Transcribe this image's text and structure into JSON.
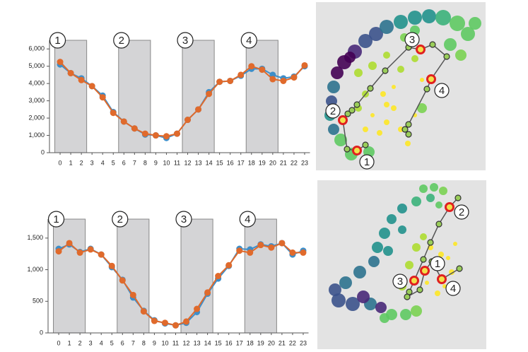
{
  "chart_data": [
    {
      "type": "line",
      "x": [
        0,
        1,
        2,
        3,
        4,
        5,
        6,
        7,
        8,
        9,
        10,
        11,
        12,
        13,
        14,
        15,
        16,
        17,
        18,
        19,
        20,
        21,
        22,
        23
      ],
      "xticks": [
        0,
        1,
        2,
        3,
        4,
        5,
        6,
        7,
        8,
        9,
        10,
        11,
        12,
        13,
        14,
        15,
        16,
        17,
        18,
        19,
        20,
        21,
        22,
        23
      ],
      "xlim": [
        -1,
        23.5
      ],
      "ylim": [
        0,
        6500
      ],
      "yticks": [
        0,
        {
          "value": 1000,
          "label": "1,000"
        },
        {
          "value": 2000,
          "label": "2,000"
        },
        {
          "value": 3000,
          "label": "3,000"
        },
        {
          "value": 4000,
          "label": "4,000"
        },
        {
          "value": 5000,
          "label": "5,000"
        },
        {
          "value": 6000,
          "label": "6,000"
        }
      ],
      "series": [
        {
          "color": "#3d8ec9",
          "values": [
            5100,
            4600,
            4300,
            3850,
            3300,
            2350,
            1800,
            1400,
            1050,
            1000,
            850,
            1100,
            1900,
            2500,
            3500,
            4100,
            4150,
            4450,
            4850,
            4850,
            4500,
            4300,
            4400,
            5000
          ]
        },
        {
          "color": "#e06a2c",
          "values": [
            5250,
            4600,
            4200,
            3850,
            3200,
            2300,
            1800,
            1400,
            1100,
            1000,
            950,
            1100,
            1900,
            2500,
            3400,
            4100,
            4150,
            4500,
            5000,
            4800,
            4250,
            4150,
            4350,
            5050
          ]
        }
      ],
      "shaded_regions": [
        {
          "label": "1",
          "x": [
            -0.5,
            2.5
          ]
        },
        {
          "label": "2",
          "x": [
            5.5,
            8.5
          ]
        },
        {
          "label": "3",
          "x": [
            11.5,
            14.5
          ]
        },
        {
          "label": "4",
          "x": [
            17.5,
            20.5
          ]
        }
      ]
    },
    {
      "type": "line",
      "x": [
        0,
        1,
        2,
        3,
        4,
        5,
        6,
        7,
        8,
        9,
        10,
        11,
        12,
        13,
        14,
        15,
        16,
        17,
        18,
        19,
        20,
        21,
        22,
        23
      ],
      "xticks": [
        0,
        1,
        2,
        3,
        4,
        5,
        6,
        7,
        8,
        9,
        10,
        11,
        12,
        13,
        14,
        15,
        16,
        17,
        18,
        19,
        20,
        21,
        22,
        23
      ],
      "xlim": [
        -1,
        23.5
      ],
      "ylim": [
        0,
        1800
      ],
      "yticks": [
        0,
        500,
        {
          "value": 1000,
          "label": "1,000"
        },
        {
          "value": 1500,
          "label": "1,500"
        }
      ],
      "series": [
        {
          "color": "#3d8ec9",
          "values": [
            1330,
            1400,
            1280,
            1330,
            1240,
            1040,
            840,
            560,
            350,
            200,
            150,
            120,
            160,
            330,
            620,
            860,
            1060,
            1330,
            1320,
            1400,
            1370,
            1420,
            1240,
            1300
          ]
        },
        {
          "color": "#e06a2c",
          "values": [
            1290,
            1420,
            1270,
            1320,
            1240,
            1060,
            830,
            600,
            340,
            190,
            160,
            120,
            180,
            380,
            640,
            900,
            1070,
            1300,
            1270,
            1390,
            1350,
            1420,
            1270,
            1270
          ]
        }
      ],
      "shaded_regions": [
        {
          "label": "1",
          "x": [
            -0.5,
            2.5
          ]
        },
        {
          "label": "2",
          "x": [
            5.5,
            8.5
          ]
        },
        {
          "label": "3",
          "x": [
            11.5,
            14.5
          ]
        },
        {
          "label": "4",
          "x": [
            17.5,
            20.5
          ]
        }
      ]
    },
    {
      "type": "scatter",
      "x": [
        40,
        30,
        55,
        48,
        70,
        85,
        25,
        22,
        100,
        120,
        140,
        20,
        25,
        160,
        180,
        200,
        215,
        225,
        35,
        50,
        75,
        190,
        205,
        150,
        140,
        125,
        95,
        100,
        110,
        100,
        120,
        140,
        90,
        80,
        130,
        110,
        70,
        150,
        60,
        80,
        100,
        70,
        60,
        120,
        140
      ],
      "y": [
        85,
        100,
        70,
        78,
        55,
        45,
        120,
        140,
        35,
        28,
        22,
        160,
        180,
        20,
        22,
        30,
        45,
        30,
        195,
        215,
        212,
        60,
        75,
        150,
        40,
        50,
        130,
        145,
        150,
        170,
        180,
        160,
        185,
        160,
        200,
        120,
        180,
        110,
        100,
        90,
        75,
        130,
        150,
        95,
        80
      ],
      "sizes": [
        10,
        9,
        10,
        8,
        10,
        10,
        9,
        8,
        10,
        10,
        10,
        8,
        8,
        10,
        11,
        11,
        10,
        9,
        9,
        9,
        8,
        9,
        8,
        7,
        7,
        6,
        4,
        4,
        4,
        4,
        4,
        3,
        4,
        3,
        4,
        3,
        4,
        3,
        6,
        6,
        5,
        5,
        5,
        5,
        5
      ],
      "colors": [
        "#440154",
        "#440154",
        "#482878",
        "#440154",
        "#3b528b",
        "#3b528b",
        "#2c728e",
        "#3b528b",
        "#2c728e",
        "#21918c",
        "#21918c",
        "#21918c",
        "#2c728e",
        "#21918c",
        "#3bb17a",
        "#5ec962",
        "#5ec962",
        "#5ec962",
        "#5ec962",
        "#5ec962",
        "#5ec962",
        "#5ec962",
        "#7ad151",
        "#7ad151",
        "#5ec962",
        "#7ad151",
        "#fde725",
        "#fde725",
        "#fde725",
        "#fde725",
        "#fde725",
        "#fde725",
        "#fde725",
        "#fde725",
        "#fde725",
        "#fde725",
        "#fde725",
        "#fde725",
        "#addc30",
        "#addc30",
        "#addc30",
        "#addc30",
        "#addc30",
        "#addc30",
        "#addc30"
      ],
      "trajectory": {
        "x": [
          70,
          58,
          44,
          38,
          45,
          51,
          58,
          77,
          98,
          131,
          148,
          165,
          185,
          163,
          157,
          131,
          126,
          131
        ],
        "y": [
          202,
          210,
          208,
          167,
          158,
          153,
          145,
          122,
          97,
          64,
          67,
          60,
          77,
          109,
          123,
          173,
          180,
          187
        ]
      },
      "highlights": [
        {
          "label": "1",
          "index": 1
        },
        {
          "label": "2",
          "index": 3
        },
        {
          "label": "3",
          "index": 10
        },
        {
          "label": "4",
          "index": 13
        }
      ]
    },
    {
      "type": "scatter",
      "x": [
        150,
        165,
        178,
        160,
        140,
        172,
        120,
        105,
        95,
        85,
        80,
        120,
        100,
        60,
        40,
        25,
        30,
        50,
        75,
        65,
        90,
        105,
        125,
        140,
        95,
        165,
        175,
        185,
        190,
        180,
        160,
        195,
        155,
        170,
        140,
        150,
        130,
        120
      ],
      "y": [
        12,
        10,
        15,
        25,
        30,
        35,
        40,
        55,
        75,
        95,
        115,
        70,
        100,
        130,
        145,
        155,
        170,
        175,
        175,
        165,
        180,
        190,
        190,
        185,
        195,
        120,
        105,
        110,
        130,
        150,
        95,
        90,
        145,
        160,
        95,
        80,
        120,
        150
      ],
      "sizes": [
        6,
        6,
        6,
        6,
        7,
        5,
        7,
        7,
        8,
        8,
        8,
        6,
        7,
        9,
        9,
        9,
        10,
        10,
        9,
        9,
        8,
        8,
        8,
        8,
        7,
        4,
        4,
        3,
        4,
        3,
        4,
        3,
        3,
        4,
        6,
        5,
        6,
        6
      ],
      "colors": [
        "#5ec962",
        "#5ec962",
        "#7ad151",
        "#3bb17a",
        "#3bb17a",
        "#5ec962",
        "#21918c",
        "#21918c",
        "#21918c",
        "#21918c",
        "#2c728e",
        "#21918c",
        "#21918c",
        "#2c728e",
        "#2c728e",
        "#3b528b",
        "#3b528b",
        "#3b528b",
        "#2c728e",
        "#482878",
        "#482878",
        "#5ec962",
        "#5ec962",
        "#7ad151",
        "#5ec962",
        "#fde725",
        "#fde725",
        "#fde725",
        "#fde725",
        "#fde725",
        "#fde725",
        "#fde725",
        "#fde725",
        "#fde725",
        "#addc30",
        "#addc30",
        "#addc30",
        "#addc30"
      ],
      "trajectory": {
        "x": [
          199,
          187,
          172,
          160,
          150,
          137,
          130,
          127,
          145,
          152,
          162,
          176,
          201
        ],
        "y": [
          25,
          38,
          62,
          88,
          112,
          142,
          158,
          165,
          155,
          128,
          115,
          140,
          125
        ]
      },
      "highlights": [
        {
          "label": "2",
          "index": 1
        },
        {
          "label": "3",
          "index": 5
        },
        {
          "label": "1",
          "index": 9
        },
        {
          "label": "4",
          "index": 11
        }
      ]
    }
  ]
}
